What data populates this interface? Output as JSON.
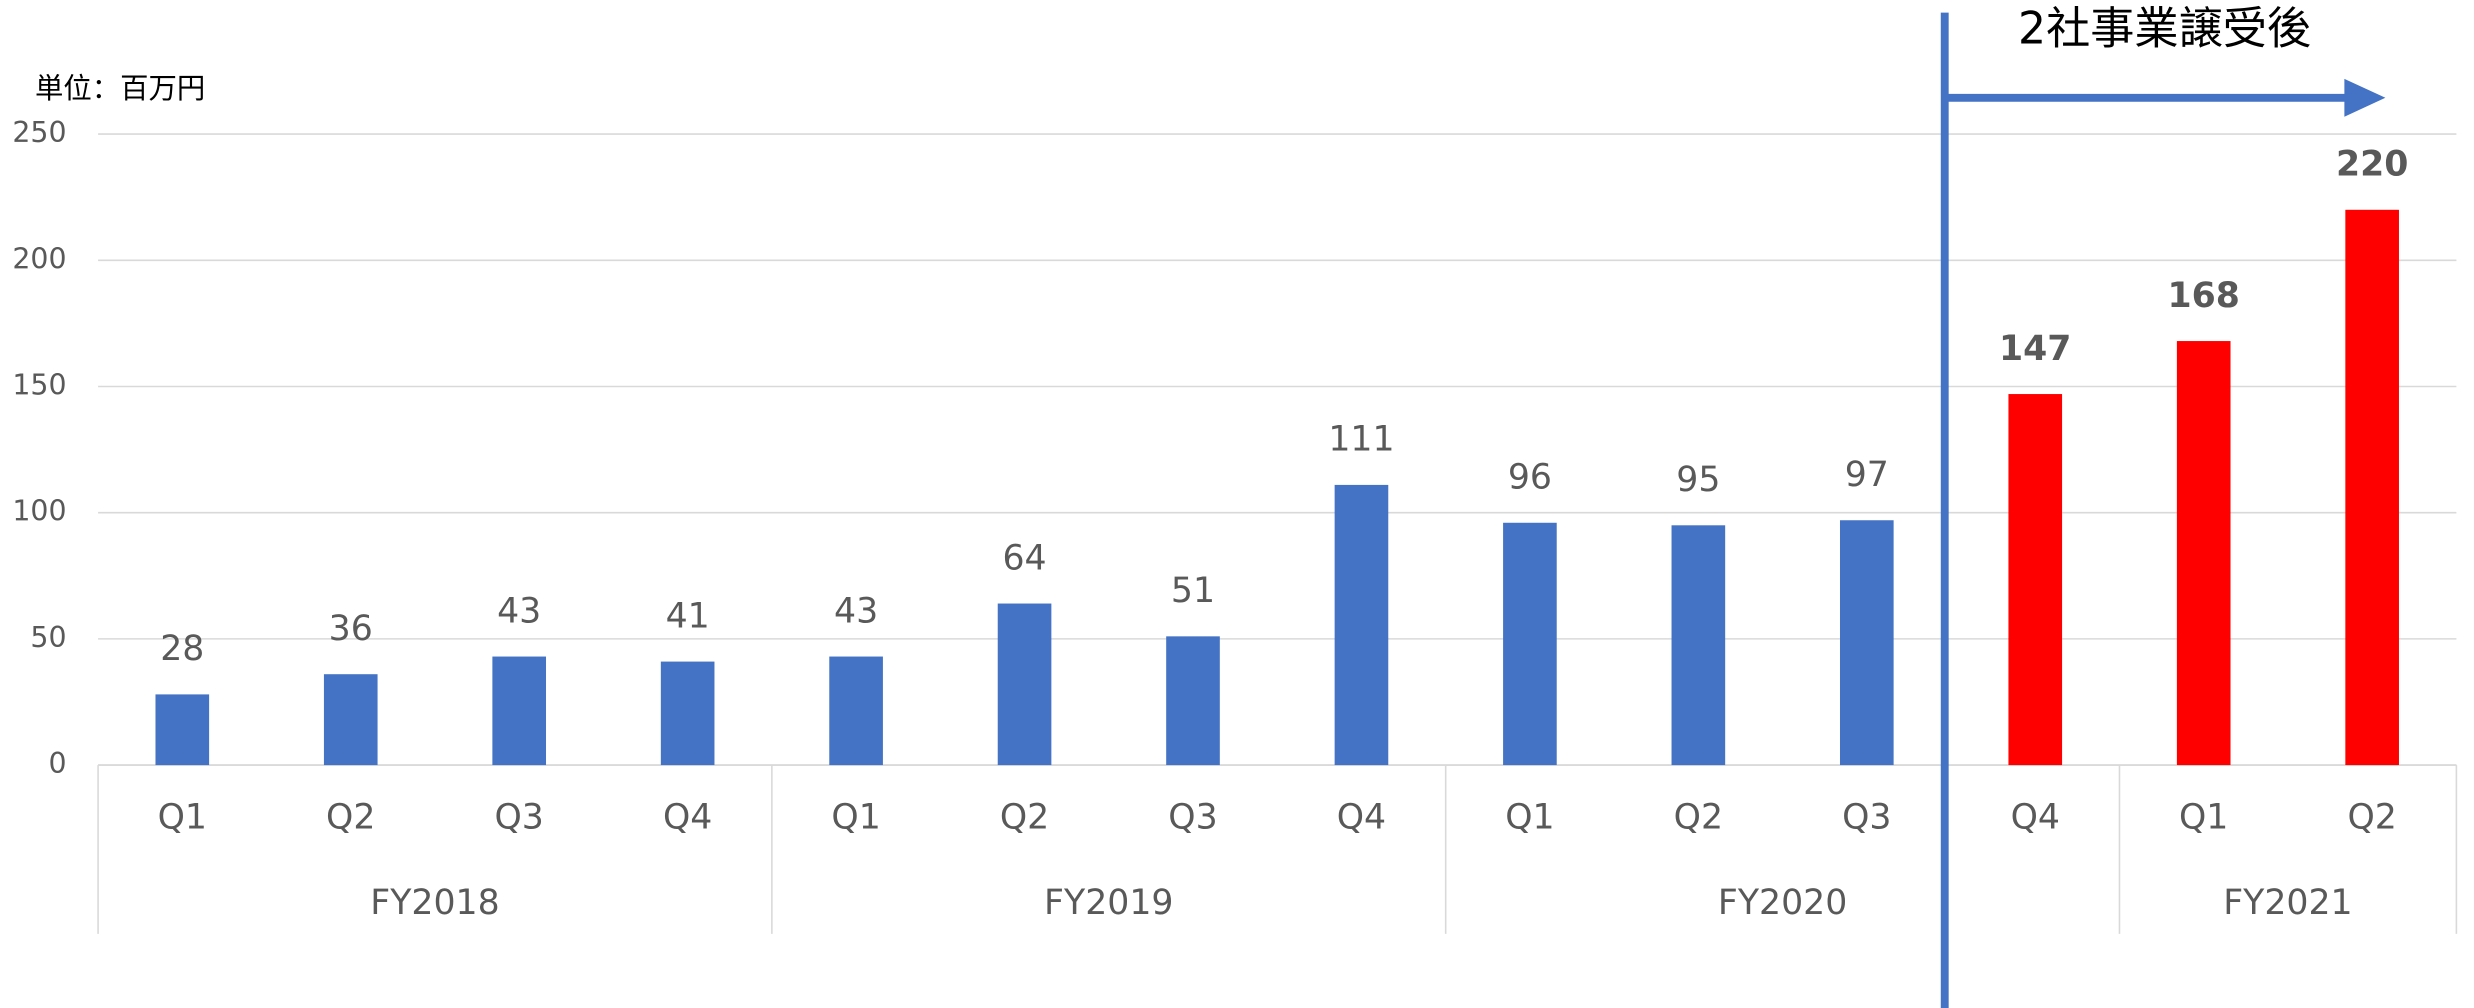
{
  "chart_data": {
    "type": "bar",
    "unit_label": "単位：百万円",
    "annotation": "2社事業譲受後",
    "groups": [
      {
        "name": "FY2018",
        "categories": [
          "Q1",
          "Q2",
          "Q3",
          "Q4"
        ]
      },
      {
        "name": "FY2019",
        "categories": [
          "Q1",
          "Q2",
          "Q3",
          "Q4"
        ]
      },
      {
        "name": "FY2020",
        "categories": [
          "Q1",
          "Q2",
          "Q3",
          "Q4"
        ]
      },
      {
        "name": "FY2021",
        "categories": [
          "Q1",
          "Q2"
        ]
      }
    ],
    "values": [
      28,
      36,
      43,
      41,
      43,
      64,
      51,
      111,
      96,
      95,
      97,
      147,
      168,
      220
    ],
    "colors": [
      "#4472c4",
      "#4472c4",
      "#4472c4",
      "#4472c4",
      "#4472c4",
      "#4472c4",
      "#4472c4",
      "#4472c4",
      "#4472c4",
      "#4472c4",
      "#4472c4",
      "#ff0000",
      "#ff0000",
      "#ff0000"
    ],
    "ylim": [
      0,
      250
    ],
    "yticks": [
      0,
      50,
      100,
      150,
      200,
      250
    ],
    "grid": true
  }
}
